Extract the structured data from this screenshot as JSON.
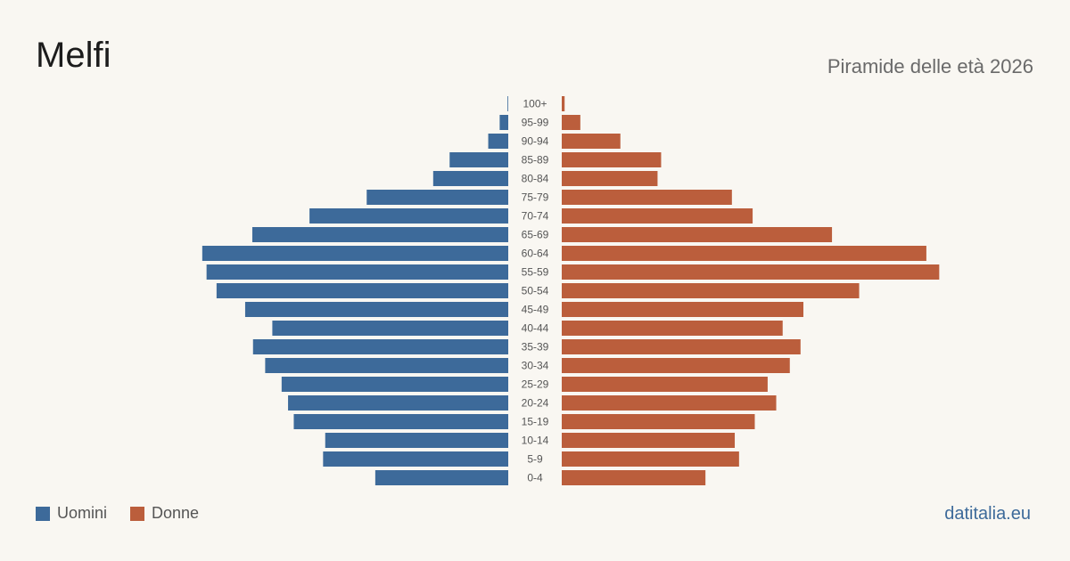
{
  "header": {
    "title": "Melfi",
    "subtitle": "Piramide delle età 2026"
  },
  "legend": {
    "men_label": "Uomini",
    "women_label": "Donne"
  },
  "footer": {
    "site": "datitalia.eu"
  },
  "colors": {
    "men": "#3d6a9a",
    "women": "#bb5e3c",
    "background": "#f9f7f2"
  },
  "chart_data": {
    "type": "bar",
    "orientation": "horizontal-pyramid",
    "categories": [
      "100+",
      "95-99",
      "90-94",
      "85-89",
      "80-84",
      "75-79",
      "70-74",
      "65-69",
      "60-64",
      "55-59",
      "50-54",
      "45-49",
      "40-44",
      "35-39",
      "30-34",
      "25-29",
      "20-24",
      "15-19",
      "10-14",
      "5-9",
      "0-4"
    ],
    "series": [
      {
        "name": "Uomini",
        "values": [
          1,
          12,
          28,
          82,
          105,
          198,
          278,
          358,
          428,
          422,
          408,
          368,
          330,
          357,
          340,
          317,
          308,
          300,
          256,
          259,
          186
        ]
      },
      {
        "name": "Donne",
        "values": [
          4,
          26,
          82,
          139,
          134,
          238,
          267,
          378,
          510,
          528,
          416,
          338,
          309,
          334,
          319,
          288,
          300,
          270,
          242,
          248,
          201
        ]
      }
    ],
    "xlim": [
      0,
      560
    ],
    "grid": false,
    "legend_position": "bottom-left"
  }
}
